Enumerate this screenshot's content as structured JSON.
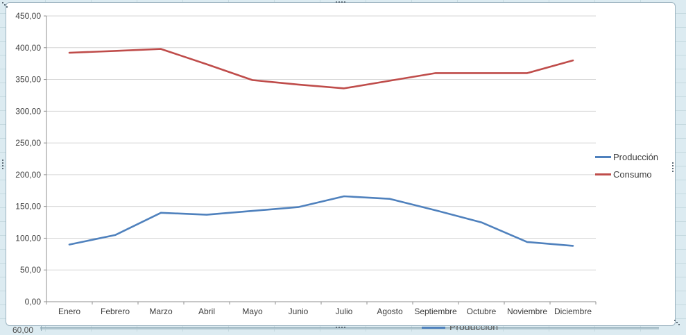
{
  "chart_data": {
    "type": "line",
    "title": "",
    "xlabel": "",
    "ylabel": "",
    "grid": true,
    "legend_position": "right",
    "ylim": [
      0,
      450
    ],
    "ytick_labels": [
      "0,00",
      "50,00",
      "100,00",
      "150,00",
      "200,00",
      "250,00",
      "300,00",
      "350,00",
      "400,00",
      "450,00"
    ],
    "categories": [
      "Enero",
      "Febrero",
      "Marzo",
      "Abril",
      "Mayo",
      "Junio",
      "Julio",
      "Agosto",
      "Septiembre",
      "Octubre",
      "Noviembre",
      "Diciembre"
    ],
    "series": [
      {
        "name": "Producción",
        "color": "#4f81bd",
        "values": [
          90,
          105,
          140,
          137,
          143,
          149,
          166,
          162,
          144,
          125,
          94,
          88
        ]
      },
      {
        "name": "Consumo",
        "color": "#bf4c4a",
        "values": [
          392,
          395,
          398,
          374,
          349,
          342,
          336,
          348,
          360,
          360,
          360,
          380
        ]
      }
    ]
  },
  "colors": {
    "gridline": "#d6d6d6",
    "axis": "#8f8f8f",
    "label_text": "#3d3d3d",
    "frame_border": "#9ab2bf",
    "sheet_background": "#dcebf1"
  },
  "background_chart": {
    "axis_label_fragment": "60,00",
    "legend_label_fragment": "Producción",
    "swatch_color": "#4f81bd"
  }
}
